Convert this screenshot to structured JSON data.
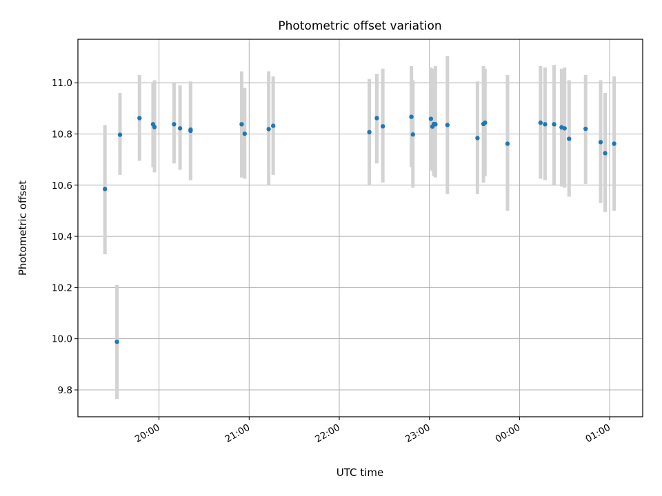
{
  "chart_data": {
    "type": "scatter",
    "title": "Photometric offset variation",
    "xlabel": "UTC time",
    "ylabel": "Photometric offset",
    "x_axis": "time",
    "xlim": [
      "19:06",
      "01:22"
    ],
    "ylim": [
      9.695,
      11.17
    ],
    "xticks": [
      "20:00",
      "21:00",
      "22:00",
      "23:00",
      "00:00",
      "01:00"
    ],
    "yticks": [
      9.8,
      10.0,
      10.2,
      10.4,
      10.6,
      10.8,
      11.0
    ],
    "grid": true,
    "marker_color": "#1f77b4",
    "errorbar_color": "#d3d3d3",
    "series": [
      {
        "x": [
          "19:24",
          "19:32",
          "19:34",
          "19:47",
          "19:56",
          "19:57",
          "20:10",
          "20:14",
          "20:21",
          "20:21",
          "20:55",
          "20:57",
          "21:13",
          "21:16",
          "22:20",
          "22:25",
          "22:29",
          "22:48",
          "22:49",
          "23:01",
          "23:02",
          "23:03",
          "23:04",
          "23:12",
          "23:32",
          "23:36",
          "23:37",
          "23:52",
          "00:14",
          "00:17",
          "00:23",
          "00:28",
          "00:30",
          "00:33",
          "00:44",
          "00:54",
          "00:57",
          "01:03"
        ],
        "y": [
          10.585,
          9.988,
          10.797,
          10.862,
          10.838,
          10.827,
          10.838,
          10.822,
          10.812,
          10.817,
          10.838,
          10.801,
          10.819,
          10.832,
          10.807,
          10.862,
          10.83,
          10.867,
          10.798,
          10.859,
          10.829,
          10.839,
          10.838,
          10.835,
          10.784,
          10.839,
          10.844,
          10.762,
          10.844,
          10.838,
          10.838,
          10.826,
          10.822,
          10.781,
          10.82,
          10.768,
          10.725,
          10.762
        ],
        "yerr_low": [
          10.33,
          9.765,
          10.64,
          10.695,
          10.67,
          10.65,
          10.685,
          10.66,
          10.62,
          10.62,
          10.63,
          10.625,
          10.6,
          10.64,
          10.6,
          10.685,
          10.61,
          10.67,
          10.59,
          10.66,
          10.655,
          10.635,
          10.63,
          10.565,
          10.565,
          10.61,
          10.635,
          10.5,
          10.625,
          10.62,
          10.6,
          10.595,
          10.59,
          10.555,
          10.605,
          10.53,
          10.495,
          10.5
        ],
        "yerr_high": [
          10.835,
          10.21,
          10.96,
          11.03,
          11.0,
          11.01,
          11.0,
          10.99,
          10.995,
          11.005,
          11.045,
          10.98,
          11.045,
          11.025,
          11.015,
          11.035,
          11.055,
          11.065,
          11.01,
          11.06,
          11.055,
          11.055,
          11.065,
          11.105,
          11.005,
          11.065,
          11.055,
          11.03,
          11.065,
          11.06,
          11.07,
          11.055,
          11.06,
          11.01,
          11.03,
          11.01,
          10.96,
          11.025
        ]
      }
    ]
  }
}
